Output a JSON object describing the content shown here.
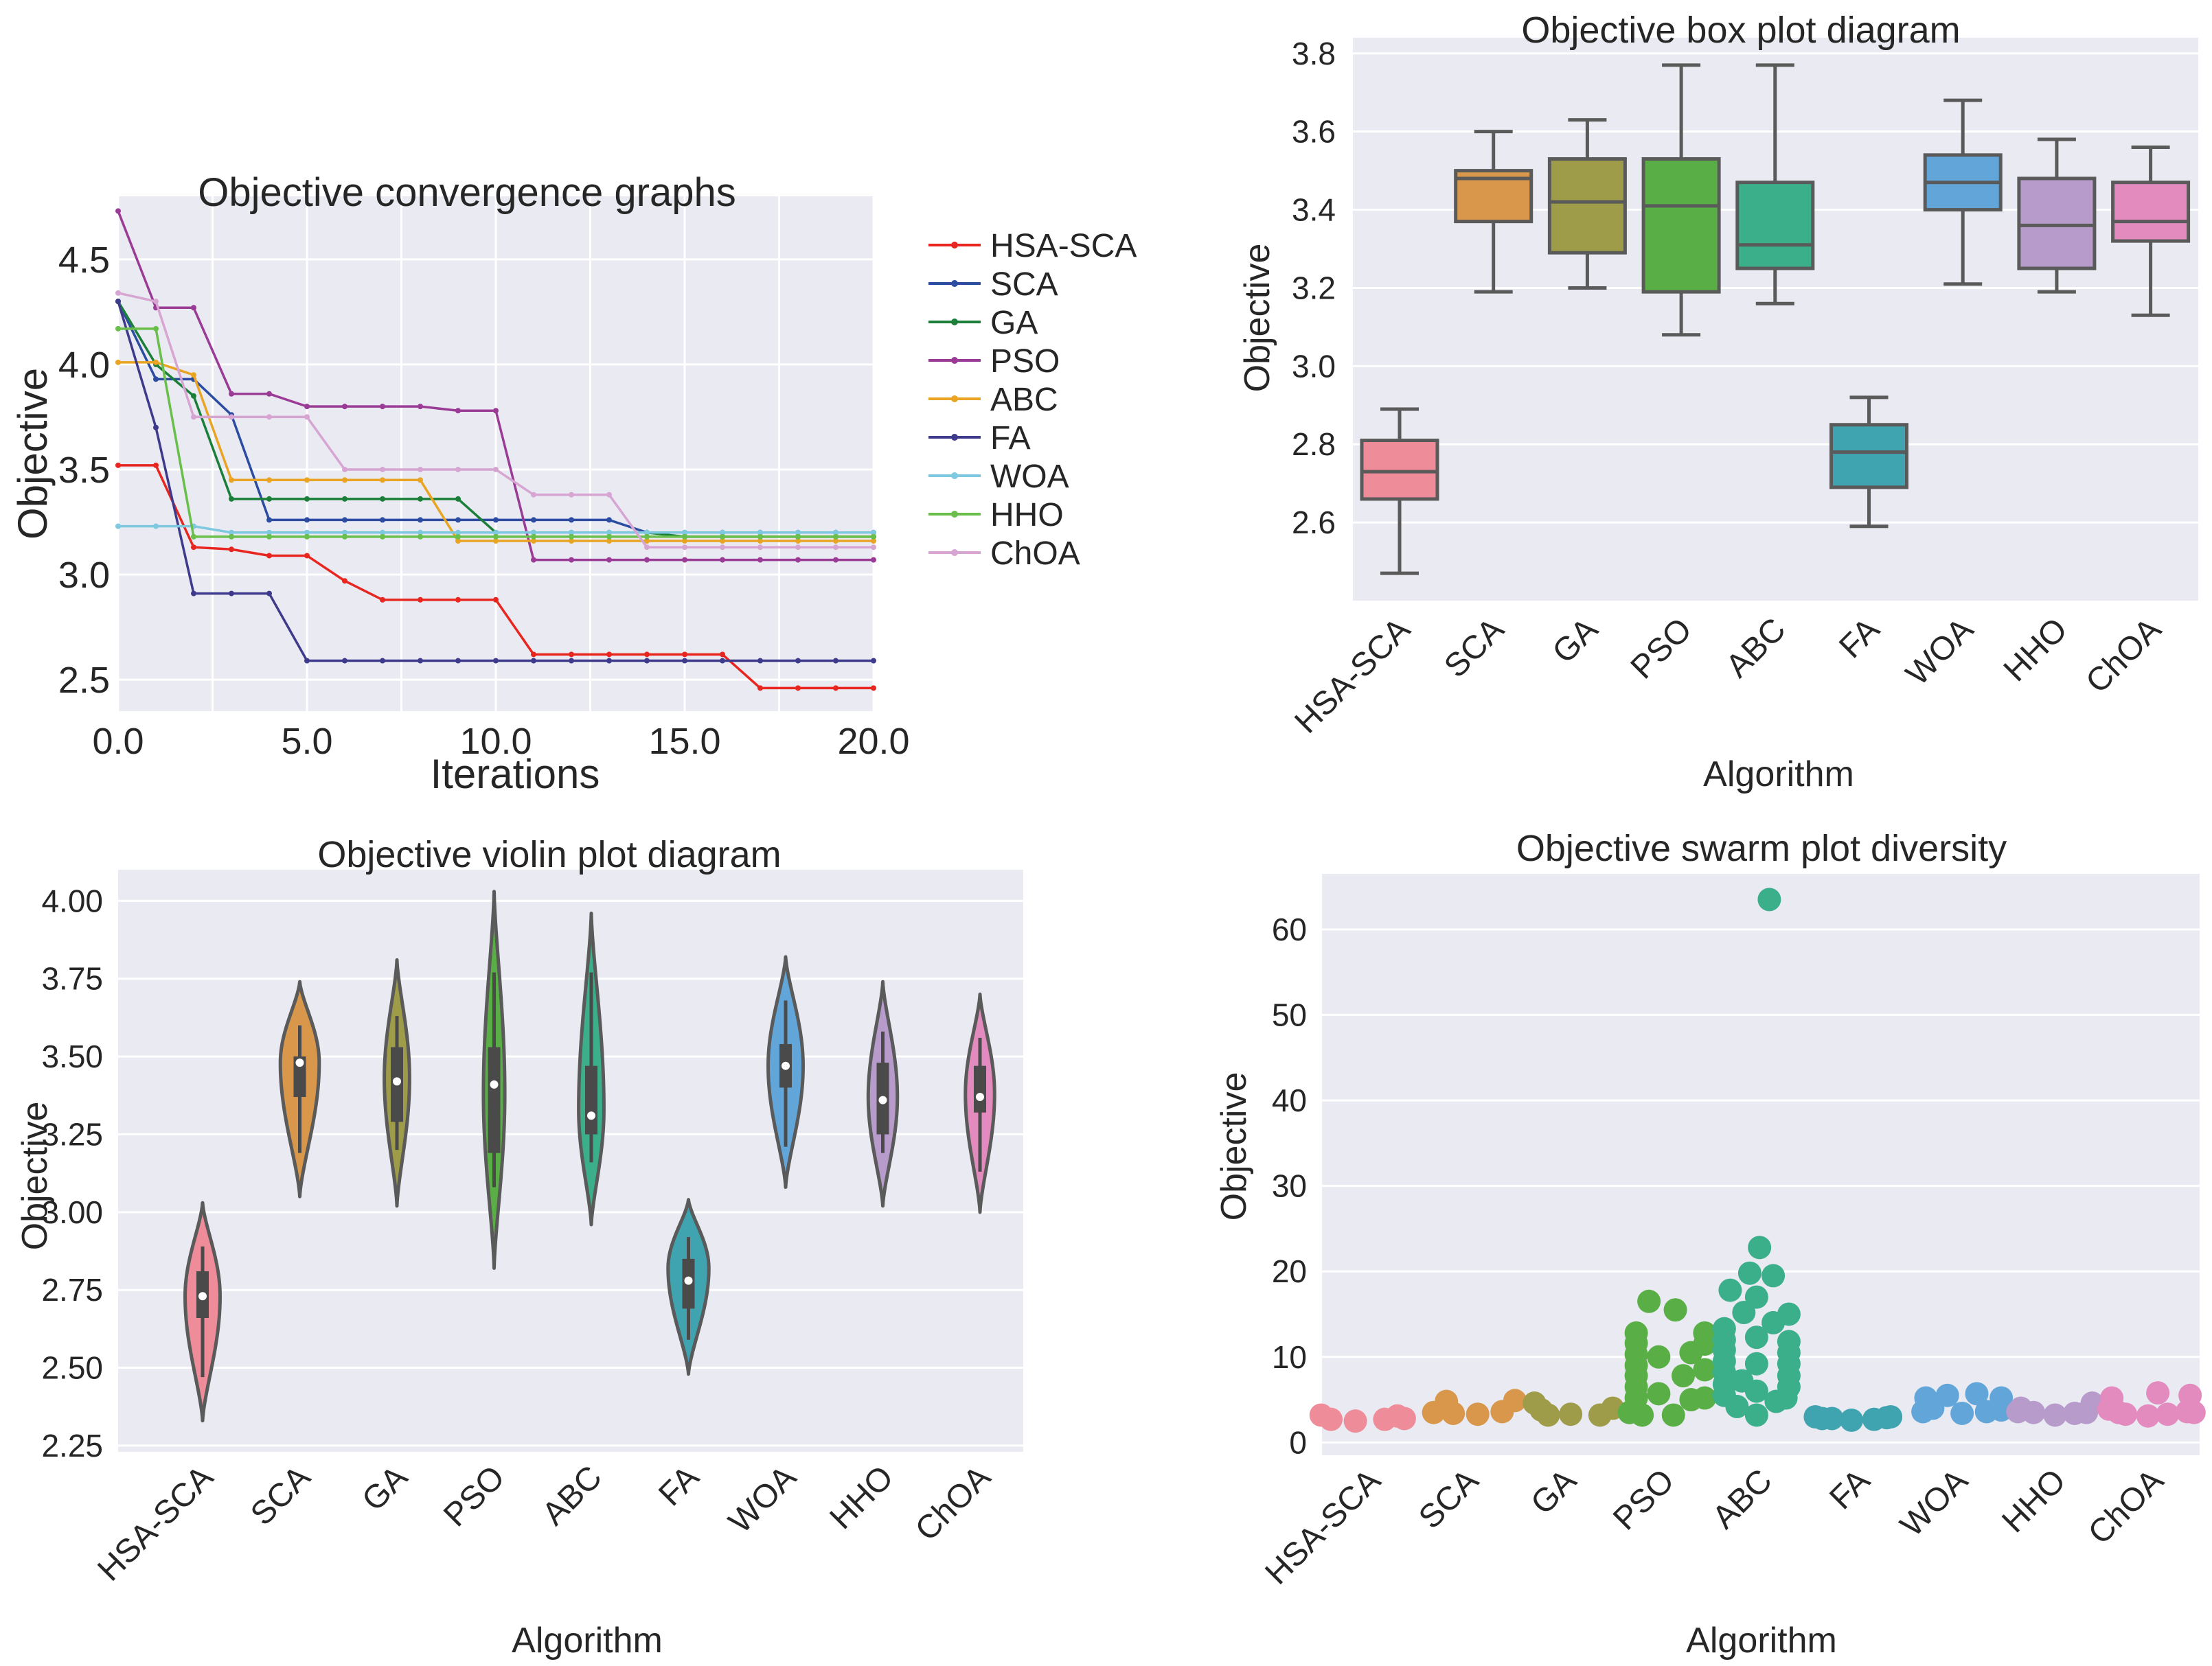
{
  "chart_data": [
    {
      "type": "line",
      "title": "Objective convergence graphs",
      "xlabel": "Iterations",
      "ylabel": "Objective",
      "xlim": [
        0,
        20
      ],
      "ylim": [
        2.35,
        4.8
      ],
      "xticks": [
        0,
        5,
        10,
        15,
        20
      ],
      "xtick_labels": [
        "0.0",
        "5.0",
        "10.0",
        "15.0",
        "20.0"
      ],
      "yticks": [
        2.5,
        3.0,
        3.5,
        4.0,
        4.5
      ],
      "ytick_labels": [
        "2.5",
        "3.0",
        "3.5",
        "4.0",
        "4.5"
      ],
      "legend": "outside-right",
      "x": [
        0,
        1,
        2,
        3,
        4,
        5,
        6,
        7,
        8,
        9,
        10,
        11,
        12,
        13,
        14,
        15,
        16,
        17,
        18,
        19,
        20
      ],
      "series": [
        {
          "name": "HSA-SCA",
          "color": "#e8261f",
          "values": [
            3.52,
            3.52,
            3.13,
            3.12,
            3.09,
            3.09,
            2.97,
            2.88,
            2.88,
            2.88,
            2.88,
            2.62,
            2.62,
            2.62,
            2.62,
            2.62,
            2.62,
            2.46,
            2.46,
            2.46,
            2.46
          ]
        },
        {
          "name": "SCA",
          "color": "#2b4ca0",
          "values": [
            4.3,
            3.93,
            3.93,
            3.76,
            3.26,
            3.26,
            3.26,
            3.26,
            3.26,
            3.26,
            3.26,
            3.26,
            3.26,
            3.26,
            3.2,
            3.2,
            3.2,
            3.2,
            3.2,
            3.2,
            3.2
          ]
        },
        {
          "name": "GA",
          "color": "#1b7f3a",
          "values": [
            4.3,
            4.0,
            3.85,
            3.36,
            3.36,
            3.36,
            3.36,
            3.36,
            3.36,
            3.36,
            3.2,
            3.2,
            3.2,
            3.2,
            3.2,
            3.18,
            3.18,
            3.18,
            3.18,
            3.18,
            3.18
          ]
        },
        {
          "name": "PSO",
          "color": "#9a3b96",
          "values": [
            4.73,
            4.27,
            4.27,
            3.86,
            3.86,
            3.8,
            3.8,
            3.8,
            3.8,
            3.78,
            3.78,
            3.07,
            3.07,
            3.07,
            3.07,
            3.07,
            3.07,
            3.07,
            3.07,
            3.07,
            3.07
          ]
        },
        {
          "name": "ABC",
          "color": "#e8a422",
          "values": [
            4.01,
            4.01,
            3.95,
            3.45,
            3.45,
            3.45,
            3.45,
            3.45,
            3.45,
            3.16,
            3.16,
            3.16,
            3.16,
            3.16,
            3.16,
            3.16,
            3.16,
            3.16,
            3.16,
            3.16,
            3.16
          ]
        },
        {
          "name": "FA",
          "color": "#3e3a8c",
          "values": [
            4.3,
            3.7,
            2.91,
            2.91,
            2.91,
            2.59,
            2.59,
            2.59,
            2.59,
            2.59,
            2.59,
            2.59,
            2.59,
            2.59,
            2.59,
            2.59,
            2.59,
            2.59,
            2.59,
            2.59,
            2.59
          ]
        },
        {
          "name": "WOA",
          "color": "#7ec9e0",
          "values": [
            3.23,
            3.23,
            3.23,
            3.2,
            3.2,
            3.2,
            3.2,
            3.2,
            3.2,
            3.2,
            3.2,
            3.2,
            3.2,
            3.2,
            3.2,
            3.2,
            3.2,
            3.2,
            3.2,
            3.2,
            3.2
          ]
        },
        {
          "name": "HHO",
          "color": "#6abf4b",
          "values": [
            4.17,
            4.17,
            3.18,
            3.18,
            3.18,
            3.18,
            3.18,
            3.18,
            3.18,
            3.18,
            3.18,
            3.18,
            3.18,
            3.18,
            3.18,
            3.18,
            3.18,
            3.18,
            3.18,
            3.18,
            3.18
          ]
        },
        {
          "name": "ChOA",
          "color": "#d7a5d2",
          "values": [
            4.34,
            4.3,
            3.75,
            3.75,
            3.75,
            3.75,
            3.5,
            3.5,
            3.5,
            3.5,
            3.5,
            3.38,
            3.38,
            3.38,
            3.13,
            3.13,
            3.13,
            3.13,
            3.13,
            3.13,
            3.13
          ]
        }
      ]
    },
    {
      "type": "box",
      "title": "Objective box plot diagram",
      "xlabel": "Algorithm",
      "ylabel": "Objective",
      "ylim": [
        2.4,
        3.84
      ],
      "yticks": [
        2.6,
        2.8,
        3.0,
        3.2,
        3.4,
        3.6,
        3.8
      ],
      "ytick_labels": [
        "2.6",
        "2.8",
        "3.0",
        "3.2",
        "3.4",
        "3.6",
        "3.8"
      ],
      "categories": [
        "HSA-SCA",
        "SCA",
        "GA",
        "PSO",
        "ABC",
        "FA",
        "WOA",
        "HHO",
        "ChOA"
      ],
      "colors": [
        "#ee8c9a",
        "#d8974b",
        "#9e9c48",
        "#59af45",
        "#3bae8a",
        "#3fa4b0",
        "#62a6d9",
        "#b69bcb",
        "#e38bbf"
      ],
      "boxes": [
        {
          "min": 2.47,
          "q1": 2.66,
          "median": 2.73,
          "q3": 2.81,
          "max": 2.89
        },
        {
          "min": 3.19,
          "q1": 3.37,
          "median": 3.48,
          "q3": 3.5,
          "max": 3.6
        },
        {
          "min": 3.2,
          "q1": 3.29,
          "median": 3.42,
          "q3": 3.53,
          "max": 3.63
        },
        {
          "min": 3.08,
          "q1": 3.19,
          "median": 3.41,
          "q3": 3.53,
          "max": 3.77
        },
        {
          "min": 3.16,
          "q1": 3.25,
          "median": 3.31,
          "q3": 3.47,
          "max": 3.77
        },
        {
          "min": 2.59,
          "q1": 2.69,
          "median": 2.78,
          "q3": 2.85,
          "max": 2.92
        },
        {
          "min": 3.21,
          "q1": 3.4,
          "median": 3.47,
          "q3": 3.54,
          "max": 3.68
        },
        {
          "min": 3.19,
          "q1": 3.25,
          "median": 3.36,
          "q3": 3.48,
          "max": 3.58
        },
        {
          "min": 3.13,
          "q1": 3.32,
          "median": 3.37,
          "q3": 3.47,
          "max": 3.56
        }
      ]
    },
    {
      "type": "violin",
      "title": "Objective violin plot diagram",
      "xlabel": "Algorithm",
      "ylabel": "Objective",
      "ylim": [
        2.23,
        4.1
      ],
      "yticks": [
        2.25,
        2.5,
        2.75,
        3.0,
        3.25,
        3.5,
        3.75,
        4.0
      ],
      "ytick_labels": [
        "2.25",
        "2.50",
        "2.75",
        "3.00",
        "3.25",
        "3.50",
        "3.75",
        "4.00"
      ],
      "categories": [
        "HSA-SCA",
        "SCA",
        "GA",
        "PSO",
        "ABC",
        "FA",
        "WOA",
        "HHO",
        "ChOA"
      ],
      "colors": [
        "#ee8c9a",
        "#d8974b",
        "#9e9c48",
        "#59af45",
        "#3bae8a",
        "#3fa4b0",
        "#62a6d9",
        "#b69bcb",
        "#e38bbf"
      ],
      "violins": [
        {
          "lo": 2.33,
          "hi": 3.03,
          "q1": 2.66,
          "median": 2.73,
          "q3": 2.81,
          "wlo": 2.47,
          "whi": 2.89,
          "peak": 2.73,
          "maxw": 0.36
        },
        {
          "lo": 3.05,
          "hi": 3.74,
          "q1": 3.37,
          "median": 3.48,
          "q3": 3.5,
          "wlo": 3.19,
          "whi": 3.6,
          "peak": 3.48,
          "maxw": 0.4
        },
        {
          "lo": 3.02,
          "hi": 3.81,
          "q1": 3.29,
          "median": 3.42,
          "q3": 3.53,
          "wlo": 3.2,
          "whi": 3.63,
          "peak": 3.43,
          "maxw": 0.26
        },
        {
          "lo": 2.82,
          "hi": 4.03,
          "q1": 3.19,
          "median": 3.41,
          "q3": 3.53,
          "wlo": 3.08,
          "whi": 3.77,
          "peak": 3.38,
          "maxw": 0.22
        },
        {
          "lo": 2.96,
          "hi": 3.96,
          "q1": 3.25,
          "median": 3.31,
          "q3": 3.47,
          "wlo": 3.16,
          "whi": 3.77,
          "peak": 3.33,
          "maxw": 0.26
        },
        {
          "lo": 2.48,
          "hi": 3.04,
          "q1": 2.69,
          "median": 2.78,
          "q3": 2.85,
          "wlo": 2.59,
          "whi": 2.92,
          "peak": 2.82,
          "maxw": 0.42
        },
        {
          "lo": 3.08,
          "hi": 3.82,
          "q1": 3.4,
          "median": 3.47,
          "q3": 3.54,
          "wlo": 3.21,
          "whi": 3.68,
          "peak": 3.47,
          "maxw": 0.36
        },
        {
          "lo": 3.02,
          "hi": 3.74,
          "q1": 3.25,
          "median": 3.36,
          "q3": 3.48,
          "wlo": 3.19,
          "whi": 3.58,
          "peak": 3.37,
          "maxw": 0.3
        },
        {
          "lo": 3.0,
          "hi": 3.7,
          "q1": 3.32,
          "median": 3.37,
          "q3": 3.47,
          "wlo": 3.13,
          "whi": 3.56,
          "peak": 3.38,
          "maxw": 0.3
        }
      ]
    },
    {
      "type": "scatter",
      "title": "Objective swarm plot diversity",
      "xlabel": "Algorithm",
      "ylabel": "Objective",
      "ylim": [
        -1.5,
        66.5
      ],
      "yticks": [
        0,
        10,
        20,
        30,
        40,
        50,
        60
      ],
      "ytick_labels": [
        "0",
        "10",
        "20",
        "30",
        "40",
        "50",
        "60"
      ],
      "categories": [
        "HSA-SCA",
        "SCA",
        "GA",
        "PSO",
        "ABC",
        "FA",
        "WOA",
        "HHO",
        "ChOA"
      ],
      "colors": [
        "#ee8c9a",
        "#d8974b",
        "#9e9c48",
        "#59af45",
        "#3bae8a",
        "#3fa4b0",
        "#62a6d9",
        "#b69bcb",
        "#e38bbf"
      ],
      "points": [
        {
          "x": -0.5,
          "y": 3.2,
          "c": 0
        },
        {
          "x": -0.4,
          "y": 2.7,
          "c": 0
        },
        {
          "x": -0.15,
          "y": 2.5,
          "c": 0
        },
        {
          "x": 0.15,
          "y": 2.7,
          "c": 0
        },
        {
          "x": 0.28,
          "y": 3.1,
          "c": 0
        },
        {
          "x": 0.35,
          "y": 2.8,
          "c": 0
        },
        {
          "x": 0.65,
          "y": 3.5,
          "c": 1
        },
        {
          "x": 0.78,
          "y": 4.8,
          "c": 1
        },
        {
          "x": 0.85,
          "y": 3.4,
          "c": 1
        },
        {
          "x": 1.1,
          "y": 3.3,
          "c": 1
        },
        {
          "x": 1.35,
          "y": 3.6,
          "c": 1
        },
        {
          "x": 1.48,
          "y": 4.9,
          "c": 1
        },
        {
          "x": 1.68,
          "y": 4.6,
          "c": 2
        },
        {
          "x": 1.75,
          "y": 3.8,
          "c": 2
        },
        {
          "x": 1.82,
          "y": 3.2,
          "c": 2
        },
        {
          "x": 2.05,
          "y": 3.3,
          "c": 2
        },
        {
          "x": 2.35,
          "y": 3.2,
          "c": 2
        },
        {
          "x": 2.48,
          "y": 4.0,
          "c": 2
        },
        {
          "x": 2.65,
          "y": 3.5,
          "c": 3
        },
        {
          "x": 2.72,
          "y": 5.2,
          "c": 3
        },
        {
          "x": 2.72,
          "y": 6.5,
          "c": 3
        },
        {
          "x": 2.72,
          "y": 7.8,
          "c": 3
        },
        {
          "x": 2.72,
          "y": 9.0,
          "c": 3
        },
        {
          "x": 2.72,
          "y": 10.3,
          "c": 3
        },
        {
          "x": 2.72,
          "y": 11.6,
          "c": 3
        },
        {
          "x": 2.72,
          "y": 12.8,
          "c": 3
        },
        {
          "x": 2.78,
          "y": 3.2,
          "c": 3
        },
        {
          "x": 2.85,
          "y": 16.5,
          "c": 3
        },
        {
          "x": 2.95,
          "y": 5.7,
          "c": 3
        },
        {
          "x": 2.95,
          "y": 10.0,
          "c": 3
        },
        {
          "x": 3.1,
          "y": 3.2,
          "c": 3
        },
        {
          "x": 3.12,
          "y": 15.5,
          "c": 3
        },
        {
          "x": 3.2,
          "y": 7.8,
          "c": 3
        },
        {
          "x": 3.28,
          "y": 5.0,
          "c": 3
        },
        {
          "x": 3.28,
          "y": 10.5,
          "c": 3
        },
        {
          "x": 3.42,
          "y": 5.2,
          "c": 3
        },
        {
          "x": 3.42,
          "y": 8.5,
          "c": 3
        },
        {
          "x": 3.42,
          "y": 11.5,
          "c": 3
        },
        {
          "x": 3.42,
          "y": 12.8,
          "c": 3
        },
        {
          "x": 3.62,
          "y": 5.5,
          "c": 4
        },
        {
          "x": 3.62,
          "y": 6.8,
          "c": 4
        },
        {
          "x": 3.62,
          "y": 8.2,
          "c": 4
        },
        {
          "x": 3.62,
          "y": 9.5,
          "c": 4
        },
        {
          "x": 3.62,
          "y": 10.8,
          "c": 4
        },
        {
          "x": 3.62,
          "y": 12.0,
          "c": 4
        },
        {
          "x": 3.62,
          "y": 13.3,
          "c": 4
        },
        {
          "x": 3.68,
          "y": 17.8,
          "c": 4
        },
        {
          "x": 3.75,
          "y": 4.2,
          "c": 4
        },
        {
          "x": 3.8,
          "y": 7.2,
          "c": 4
        },
        {
          "x": 3.82,
          "y": 15.2,
          "c": 4
        },
        {
          "x": 3.88,
          "y": 19.8,
          "c": 4
        },
        {
          "x": 3.95,
          "y": 3.2,
          "c": 4
        },
        {
          "x": 3.95,
          "y": 6.0,
          "c": 4
        },
        {
          "x": 3.95,
          "y": 9.2,
          "c": 4
        },
        {
          "x": 3.95,
          "y": 12.3,
          "c": 4
        },
        {
          "x": 3.95,
          "y": 17.0,
          "c": 4
        },
        {
          "x": 3.98,
          "y": 22.8,
          "c": 4
        },
        {
          "x": 4.08,
          "y": 63.5,
          "c": 4
        },
        {
          "x": 4.12,
          "y": 14.0,
          "c": 4
        },
        {
          "x": 4.12,
          "y": 19.5,
          "c": 4
        },
        {
          "x": 4.15,
          "y": 4.8,
          "c": 4
        },
        {
          "x": 4.25,
          "y": 5.2,
          "c": 4
        },
        {
          "x": 4.28,
          "y": 6.5,
          "c": 4
        },
        {
          "x": 4.28,
          "y": 7.8,
          "c": 4
        },
        {
          "x": 4.28,
          "y": 9.2,
          "c": 4
        },
        {
          "x": 4.28,
          "y": 10.5,
          "c": 4
        },
        {
          "x": 4.28,
          "y": 11.8,
          "c": 4
        },
        {
          "x": 4.28,
          "y": 15.0,
          "c": 4
        },
        {
          "x": 4.55,
          "y": 3.0,
          "c": 5
        },
        {
          "x": 4.62,
          "y": 2.8,
          "c": 5
        },
        {
          "x": 4.72,
          "y": 2.8,
          "c": 5
        },
        {
          "x": 4.92,
          "y": 2.6,
          "c": 5
        },
        {
          "x": 5.15,
          "y": 2.7,
          "c": 5
        },
        {
          "x": 5.28,
          "y": 2.9,
          "c": 5
        },
        {
          "x": 5.32,
          "y": 3.0,
          "c": 5
        },
        {
          "x": 5.65,
          "y": 3.6,
          "c": 6
        },
        {
          "x": 5.68,
          "y": 5.2,
          "c": 6
        },
        {
          "x": 5.75,
          "y": 4.0,
          "c": 6
        },
        {
          "x": 5.9,
          "y": 5.5,
          "c": 6
        },
        {
          "x": 6.05,
          "y": 3.4,
          "c": 6
        },
        {
          "x": 6.2,
          "y": 5.7,
          "c": 6
        },
        {
          "x": 6.3,
          "y": 3.6,
          "c": 6
        },
        {
          "x": 6.45,
          "y": 3.8,
          "c": 6
        },
        {
          "x": 6.45,
          "y": 5.2,
          "c": 6
        },
        {
          "x": 6.62,
          "y": 3.6,
          "c": 7
        },
        {
          "x": 6.65,
          "y": 4.0,
          "c": 7
        },
        {
          "x": 6.78,
          "y": 3.5,
          "c": 7
        },
        {
          "x": 7.0,
          "y": 3.2,
          "c": 7
        },
        {
          "x": 7.2,
          "y": 3.4,
          "c": 7
        },
        {
          "x": 7.32,
          "y": 3.5,
          "c": 7
        },
        {
          "x": 7.38,
          "y": 4.6,
          "c": 7
        },
        {
          "x": 7.55,
          "y": 3.9,
          "c": 8
        },
        {
          "x": 7.58,
          "y": 5.2,
          "c": 8
        },
        {
          "x": 7.65,
          "y": 3.5,
          "c": 8
        },
        {
          "x": 7.72,
          "y": 3.3,
          "c": 8
        },
        {
          "x": 7.95,
          "y": 3.1,
          "c": 8
        },
        {
          "x": 8.05,
          "y": 5.8,
          "c": 8
        },
        {
          "x": 8.15,
          "y": 3.3,
          "c": 8
        },
        {
          "x": 8.35,
          "y": 3.6,
          "c": 8
        },
        {
          "x": 8.38,
          "y": 5.5,
          "c": 8
        },
        {
          "x": 8.42,
          "y": 3.5,
          "c": 8
        }
      ]
    }
  ]
}
